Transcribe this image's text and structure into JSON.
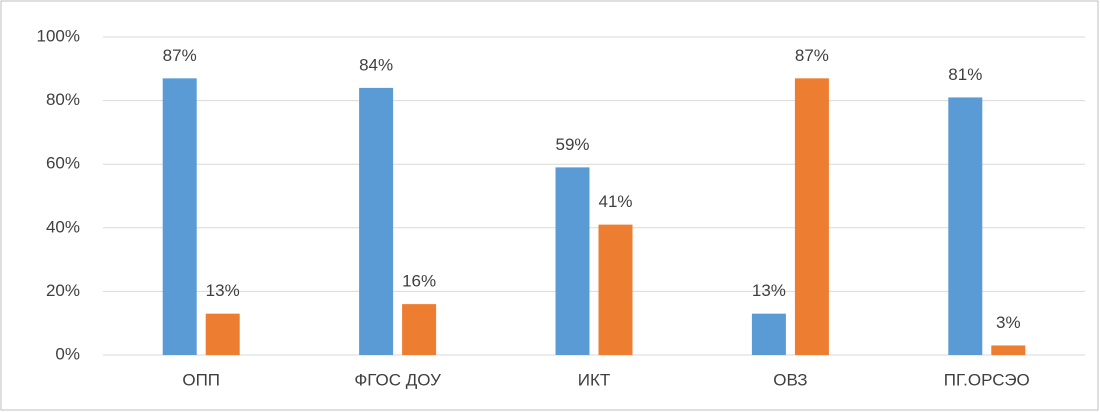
{
  "chart_data": {
    "type": "bar",
    "categories": [
      "ОПП",
      "ФГОС ДОУ",
      "ИКТ",
      "ОВЗ",
      "ПГ.ОРСЭО"
    ],
    "series": [
      {
        "color": "#5b9bd5",
        "values": [
          87,
          84,
          59,
          13,
          81
        ],
        "value_labels": [
          "87%",
          "84%",
          "59%",
          "13%",
          "81%"
        ]
      },
      {
        "color": "#ed7d31",
        "values": [
          13,
          16,
          41,
          87,
          3
        ],
        "value_labels": [
          "13%",
          "16%",
          "41%",
          "87%",
          "3%"
        ]
      }
    ],
    "ylim": [
      0,
      100
    ],
    "yticks": [
      {
        "value": 0,
        "label": "0%"
      },
      {
        "value": 20,
        "label": "20%"
      },
      {
        "value": 40,
        "label": "40%"
      },
      {
        "value": 60,
        "label": "60%"
      },
      {
        "value": 80,
        "label": "80%"
      },
      {
        "value": 100,
        "label": "100%"
      }
    ],
    "grid": true
  }
}
